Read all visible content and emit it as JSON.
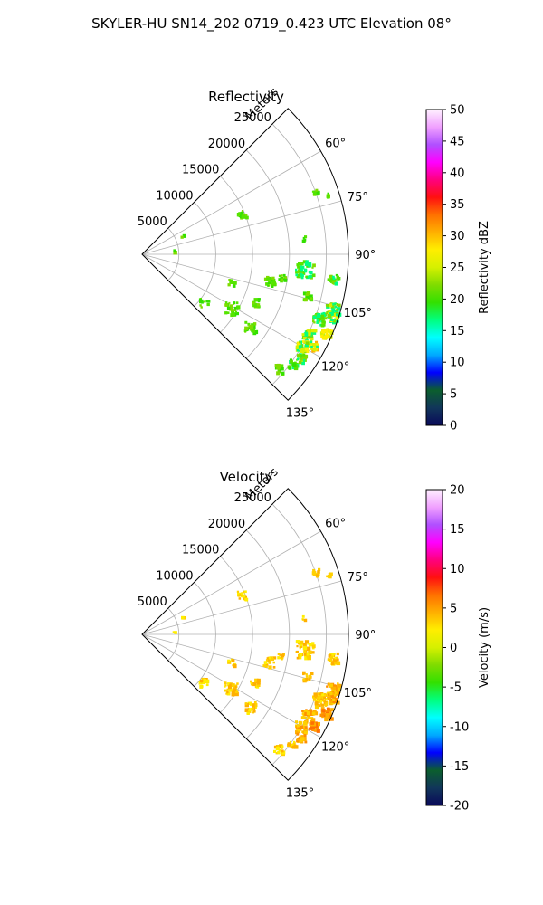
{
  "figure_title": "SKYLER-HU  SN14_202  0719_0.423 UTC Elevation 08°",
  "colors": {
    "grid": "#b0b0b0",
    "frame": "#000000"
  },
  "chart_data": [
    {
      "type": "heatmap",
      "projection": "polar-sector",
      "title": "Reflectivity",
      "radial_label": "Meters",
      "radial_ticks": [
        "5000",
        "10000",
        "15000",
        "20000",
        "25000"
      ],
      "radial_range": [
        0,
        28000
      ],
      "angle_ticks": [
        "60°",
        "75°",
        "90°",
        "105°",
        "120°",
        "135°"
      ],
      "angle_range_deg": [
        45,
        135
      ],
      "colorbar": {
        "label": "Reflectivity dBZ",
        "ticks": [
          "0",
          "5",
          "10",
          "15",
          "20",
          "25",
          "30",
          "35",
          "40",
          "45",
          "50"
        ],
        "range": [
          0,
          50
        ],
        "stops": [
          "#0a0a5a",
          "#11365a",
          "#0b5e2e",
          "#0000ff",
          "#00a8ff",
          "#00ffff",
          "#00ff80",
          "#33e000",
          "#7fdc00",
          "#d6f000",
          "#ffee00",
          "#ffb000",
          "#ff7000",
          "#ff1010",
          "#ff0080",
          "#ff00ff",
          "#b050ff",
          "#f0a0ff",
          "#fff0ff"
        ]
      }
    },
    {
      "type": "heatmap",
      "projection": "polar-sector",
      "title": "Velocity",
      "radial_label": "Meters",
      "radial_ticks": [
        "5000",
        "10000",
        "15000",
        "20000",
        "25000"
      ],
      "radial_range": [
        0,
        28000
      ],
      "angle_ticks": [
        "60°",
        "75°",
        "90°",
        "105°",
        "120°",
        "135°"
      ],
      "angle_range_deg": [
        45,
        135
      ],
      "colorbar": {
        "label": "Velocity (m/s)",
        "ticks": [
          "-20",
          "-15",
          "-10",
          "-5",
          "0",
          "5",
          "10",
          "15",
          "20"
        ],
        "range": [
          -20,
          20
        ],
        "stops": [
          "#0a0a5a",
          "#11365a",
          "#0b5e2e",
          "#0000ff",
          "#00a8ff",
          "#00ffff",
          "#00ff80",
          "#33e000",
          "#7fdc00",
          "#d6f000",
          "#ffee00",
          "#ffb000",
          "#ff7000",
          "#ff1010",
          "#ff0080",
          "#ff00ff",
          "#b050ff",
          "#f0a0ff",
          "#fff0ff"
        ]
      }
    }
  ]
}
